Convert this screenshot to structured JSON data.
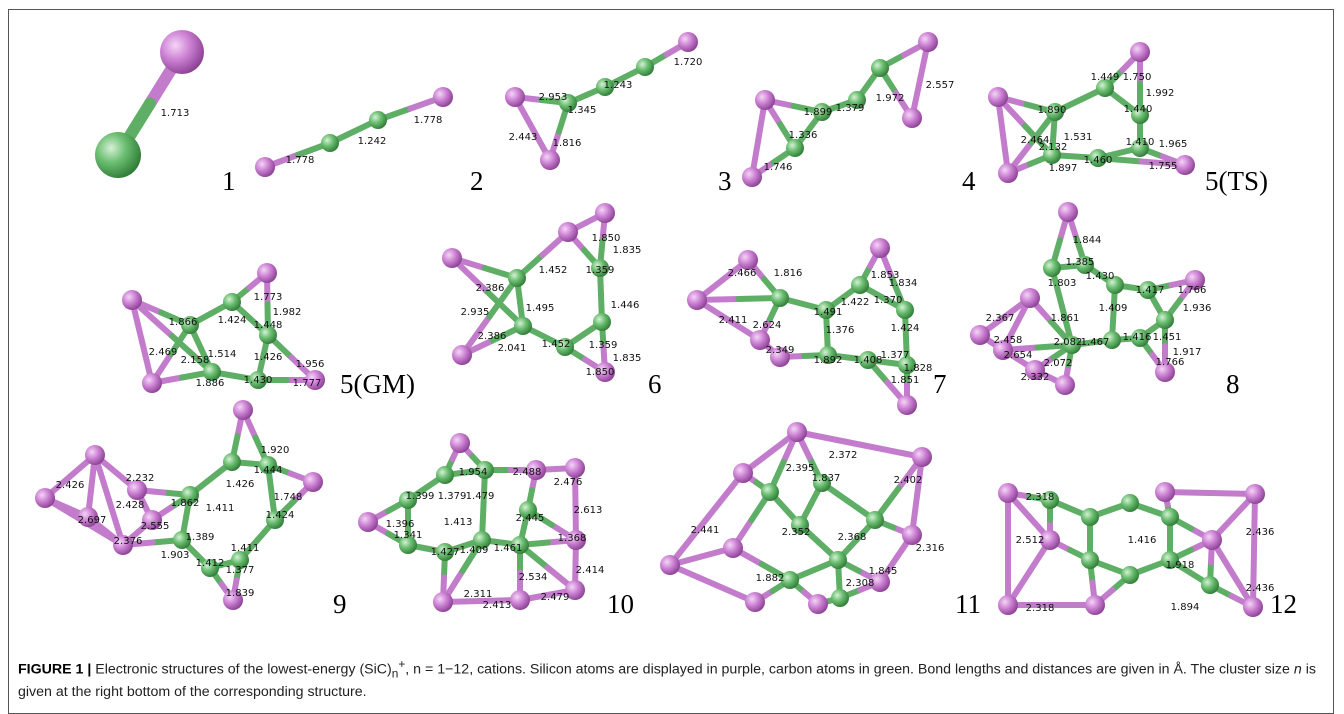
{
  "figure": {
    "panels": [
      {
        "label": "1",
        "bonds": [
          "1.713"
        ]
      },
      {
        "label": "2",
        "bonds": [
          "1.778",
          "1.242",
          "1.778"
        ]
      },
      {
        "label": "3",
        "bonds": [
          "2.953",
          "1.345",
          "1.243",
          "1.720",
          "2.443",
          "1.816"
        ]
      },
      {
        "label": "4",
        "bonds": [
          "1.899",
          "1.379",
          "1.336",
          "1.746",
          "1.972",
          "2.557"
        ]
      },
      {
        "label": "5(TS)",
        "bonds": [
          "1.750",
          "1.992",
          "1.449",
          "1.890",
          "1.440",
          "2.464",
          "1.531",
          "2.132",
          "1.410",
          "1.965",
          "1.897",
          "1.460",
          "1.755"
        ]
      },
      {
        "label": "5(GM)",
        "bonds": [
          "1.866",
          "1.424",
          "1.773",
          "1.982",
          "1.448",
          "2.469",
          "1.514",
          "2.158",
          "1.426",
          "1.956",
          "1.886",
          "1.430",
          "1.777"
        ]
      },
      {
        "label": "6",
        "bonds": [
          "1.850",
          "1.835",
          "1.452",
          "1.359",
          "2.386",
          "1.495",
          "1.446",
          "2.935",
          "2.386",
          "1.452",
          "1.359",
          "2.041",
          "1.835",
          "1.850"
        ]
      },
      {
        "label": "7",
        "bonds": [
          "1.853",
          "1.834",
          "2.466",
          "1.816",
          "1.422",
          "1.370",
          "1.491",
          "2.411",
          "2.624",
          "1.424",
          "1.376",
          "2.349",
          "1.892",
          "1.408",
          "1.377",
          "1.828",
          "1.851"
        ]
      },
      {
        "label": "8",
        "bonds": [
          "1.844",
          "1.385",
          "1.430",
          "1.803",
          "1.417",
          "1.766",
          "1.936",
          "1.409",
          "2.367",
          "1.861",
          "2.458",
          "2.082",
          "1.467",
          "1.416",
          "1.451",
          "2.654",
          "1.917",
          "2.072",
          "2.332",
          "1.766"
        ]
      },
      {
        "label": "9",
        "bonds": [
          "1.426",
          "1.411",
          "1.424",
          "1.389",
          "1.411",
          "1.862",
          "1.903",
          "1.412",
          "1.377",
          "1.839",
          "1.920",
          "1.444",
          "1.748",
          "2.426",
          "2.232",
          "2.428",
          "2.697",
          "2.555",
          "2.376"
        ]
      },
      {
        "label": "10",
        "bonds": [
          "1.954",
          "2.488",
          "2.476",
          "1.399",
          "1.379",
          "1.479",
          "1.413",
          "2.445",
          "2.613",
          "1.396",
          "1.341",
          "1.427",
          "1.409",
          "1.461",
          "1.368",
          "2.534",
          "2.414",
          "2.311",
          "2.413",
          "2.479"
        ]
      },
      {
        "label": "11",
        "bonds": [
          "2.395",
          "2.372",
          "2.402",
          "2.441",
          "1.837",
          "2.316",
          "2.352",
          "2.368",
          "1.882",
          "1.845",
          "2.308"
        ]
      },
      {
        "label": "12",
        "bonds": [
          "2.318",
          "2.512",
          "1.416",
          "1.918",
          "2.436",
          "2.436",
          "2.318",
          "1.894"
        ]
      }
    ],
    "caption": {
      "figure_label": "FIGURE 1 |",
      "text_1": "Electronic structures of the lowest-energy (SiC)",
      "subscript": "n",
      "superscript": "+",
      "text_2": ", n = 1−12, cations. Silicon atoms are displayed in purple, carbon atoms in green. Bond lengths and distances are given in Å. The cluster size ",
      "italic": "n",
      "text_3": " is given at the right bottom of the corresponding structure."
    }
  }
}
